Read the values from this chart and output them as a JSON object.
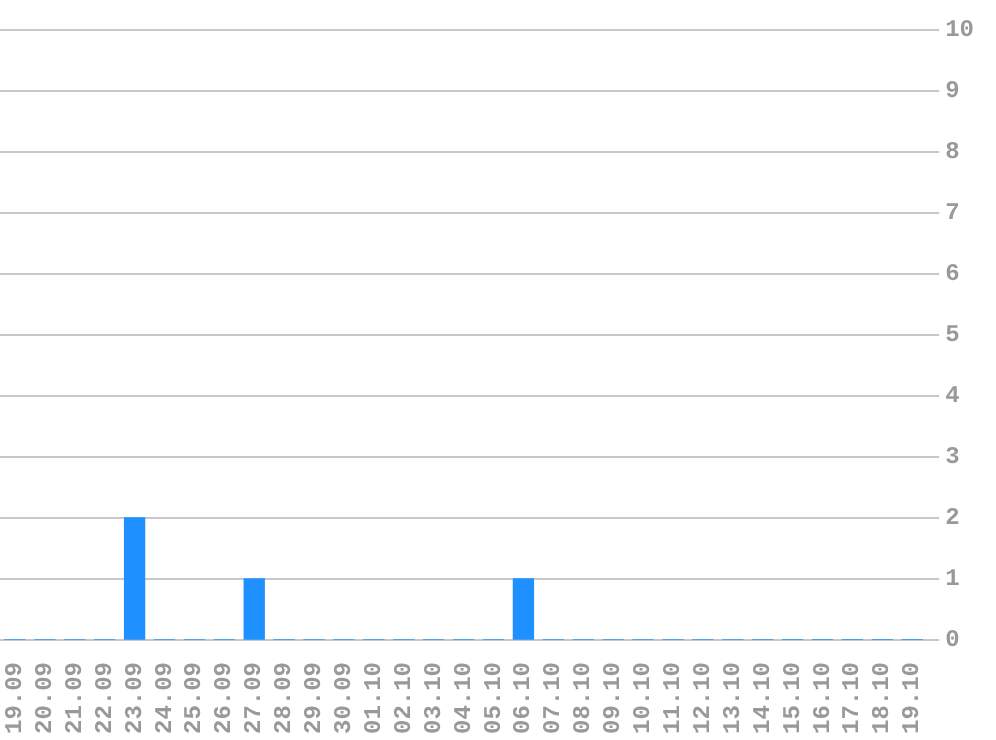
{
  "chart_data": {
    "type": "bar",
    "categories": [
      "19.09",
      "20.09",
      "21.09",
      "22.09",
      "23.09",
      "24.09",
      "25.09",
      "26.09",
      "27.09",
      "28.09",
      "29.09",
      "30.09",
      "01.10",
      "02.10",
      "03.10",
      "04.10",
      "05.10",
      "06.10",
      "07.10",
      "08.10",
      "09.10",
      "10.10",
      "11.10",
      "12.10",
      "13.10",
      "14.10",
      "15.10",
      "16.10",
      "17.10",
      "18.10",
      "19.10"
    ],
    "values": [
      0,
      0,
      0,
      0,
      2,
      0,
      0,
      0,
      1,
      0,
      0,
      0,
      0,
      0,
      0,
      0,
      0,
      1,
      0,
      0,
      0,
      0,
      0,
      0,
      0,
      0,
      0,
      0,
      0,
      0,
      0
    ],
    "color": "#1e90ff",
    "ylim": [
      0,
      10
    ],
    "yticks": [
      0,
      1,
      2,
      3,
      4,
      5,
      6,
      7,
      8,
      9,
      10
    ],
    "grid": "y"
  }
}
